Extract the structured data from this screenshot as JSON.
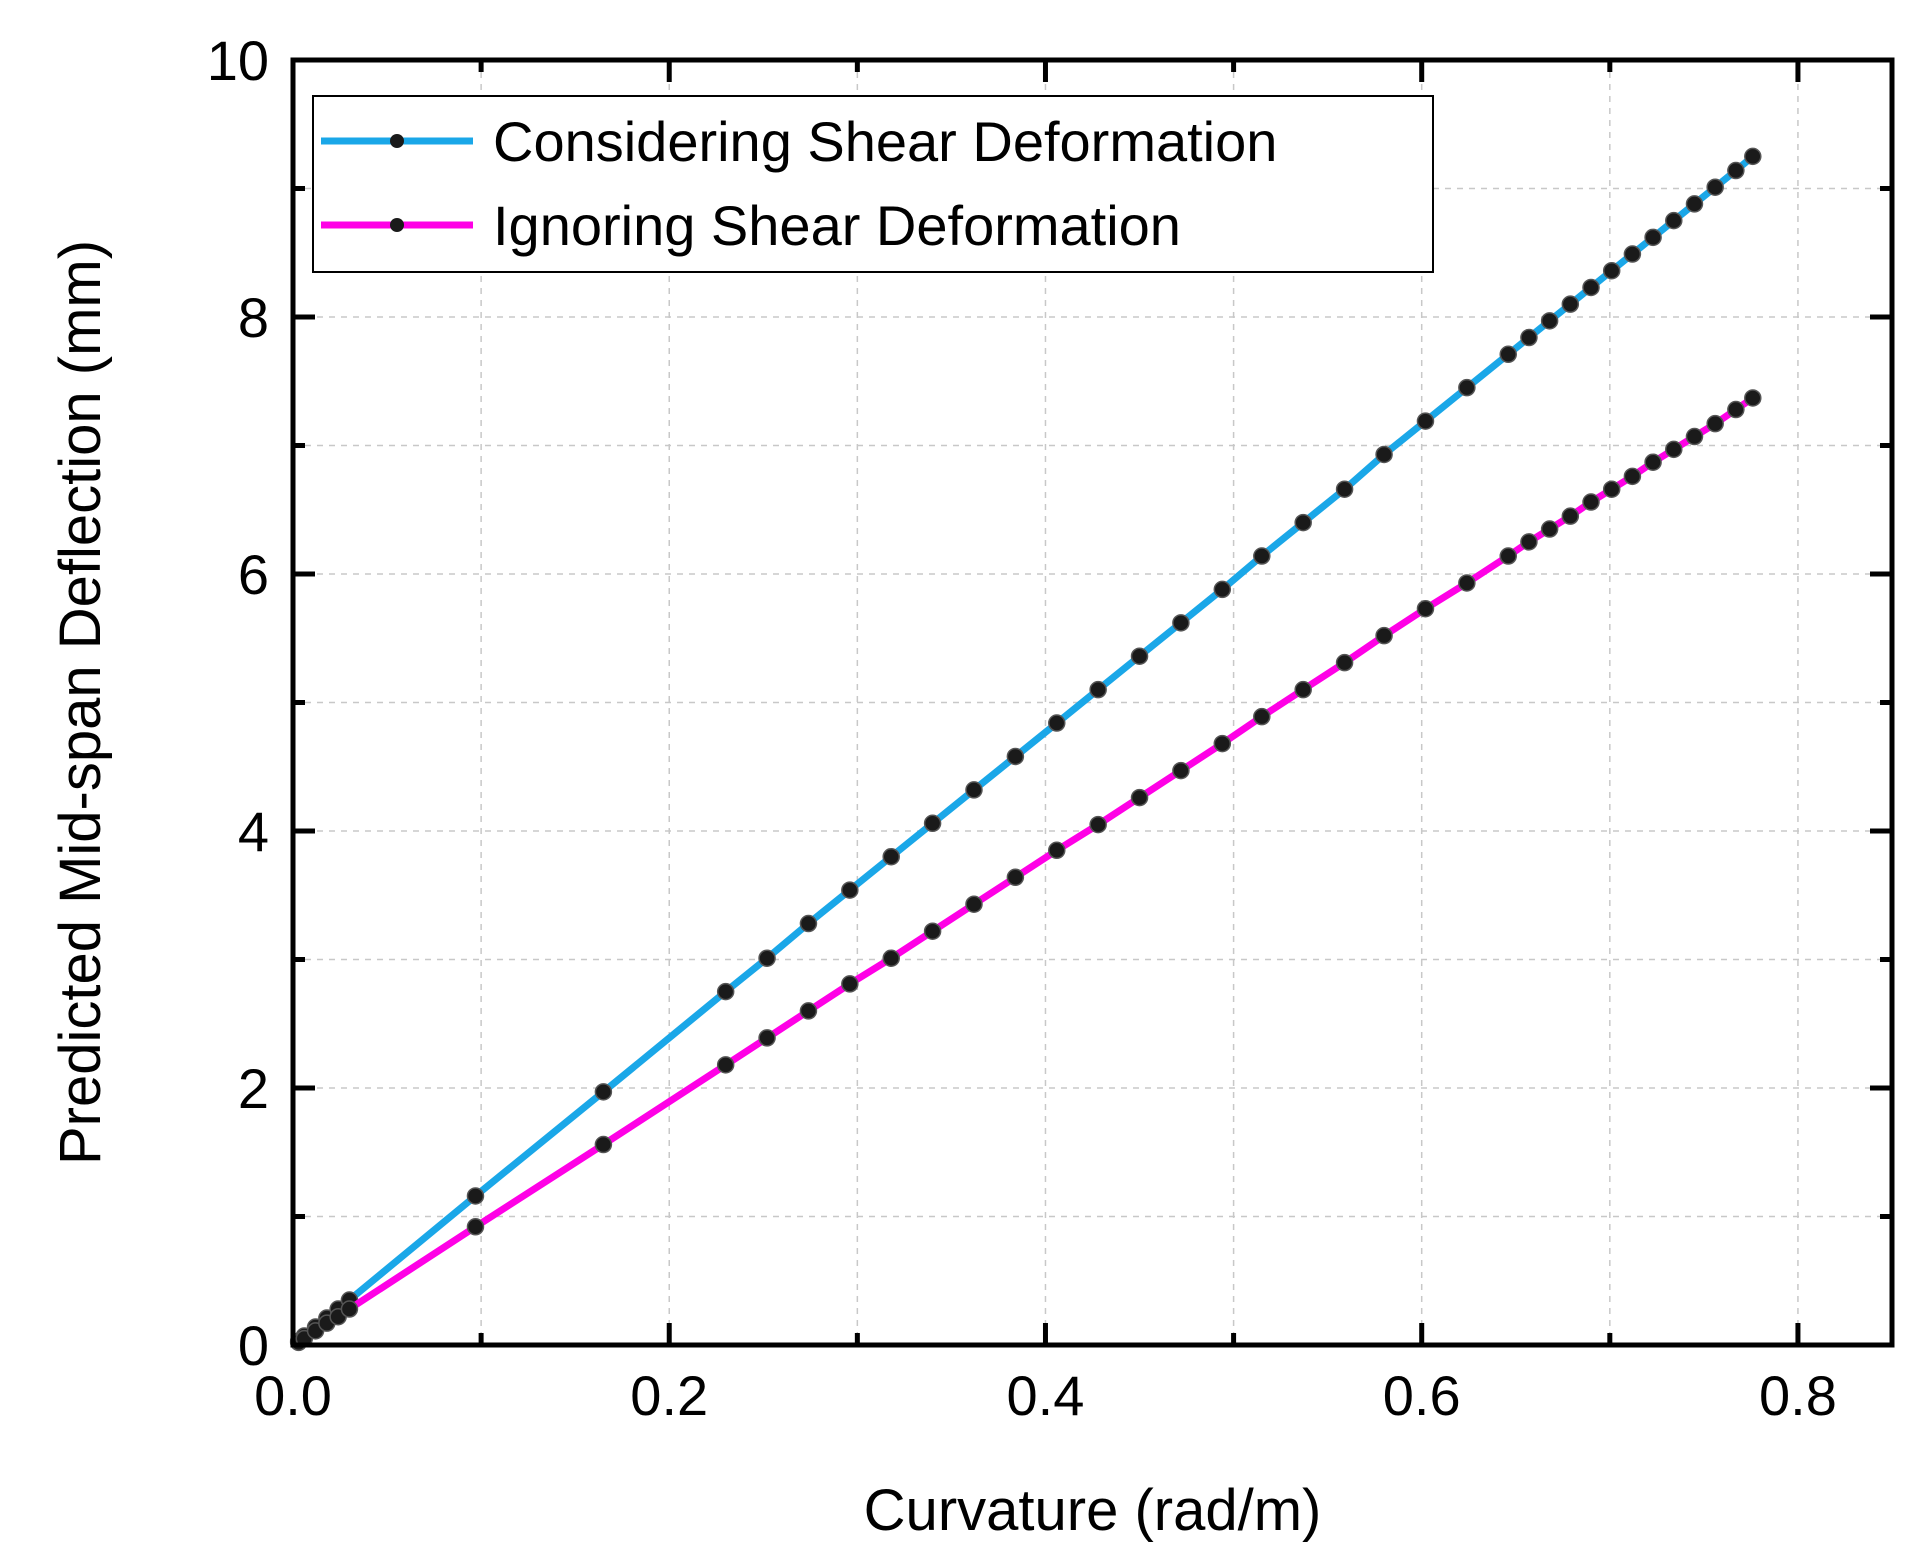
{
  "chart_data": {
    "type": "line",
    "title": "",
    "xlabel": "Curvature (rad/m)",
    "ylabel": "Predicted Mid-span Deflection (mm)",
    "xlim": [
      0,
      0.85
    ],
    "ylim": [
      0,
      10
    ],
    "xticks": [
      0.0,
      0.2,
      0.4,
      0.6,
      0.8
    ],
    "xtick_labels": [
      "0.0",
      "0.2",
      "0.4",
      "0.6",
      "0.8"
    ],
    "yticks": [
      0,
      2,
      4,
      6,
      8,
      10
    ],
    "ytick_labels": [
      "0",
      "2",
      "4",
      "6",
      "8",
      "10"
    ],
    "x_minor_step": 0.1,
    "y_minor_step": 1,
    "grid": true,
    "legend_position": "top-left",
    "series": [
      {
        "name": "Considering Shear Deformation",
        "color": "#1aa7e8",
        "marker_color": "#1a1a1a",
        "x": [
          0.003,
          0.006,
          0.012,
          0.018,
          0.024,
          0.03,
          0.097,
          0.165,
          0.23,
          0.252,
          0.274,
          0.296,
          0.318,
          0.34,
          0.362,
          0.384,
          0.406,
          0.428,
          0.45,
          0.472,
          0.494,
          0.515,
          0.537,
          0.559,
          0.58,
          0.602,
          0.624,
          0.646,
          0.657,
          0.668,
          0.679,
          0.69,
          0.701,
          0.712,
          0.723,
          0.734,
          0.745,
          0.756,
          0.767,
          0.776
        ],
        "y": [
          0.03,
          0.07,
          0.14,
          0.21,
          0.28,
          0.35,
          1.16,
          1.97,
          2.75,
          3.01,
          3.28,
          3.54,
          3.8,
          4.06,
          4.32,
          4.58,
          4.84,
          5.1,
          5.36,
          5.62,
          5.88,
          6.14,
          6.4,
          6.66,
          6.93,
          7.19,
          7.45,
          7.71,
          7.84,
          7.97,
          8.1,
          8.23,
          8.36,
          8.49,
          8.62,
          8.75,
          8.88,
          9.01,
          9.14,
          9.25
        ]
      },
      {
        "name": "Ignoring Shear Deformation",
        "color": "#ff00e6",
        "marker_color": "#1a1a1a",
        "x": [
          0.003,
          0.006,
          0.012,
          0.018,
          0.024,
          0.03,
          0.097,
          0.165,
          0.23,
          0.252,
          0.274,
          0.296,
          0.318,
          0.34,
          0.362,
          0.384,
          0.406,
          0.428,
          0.45,
          0.472,
          0.494,
          0.515,
          0.537,
          0.559,
          0.58,
          0.602,
          0.624,
          0.646,
          0.657,
          0.668,
          0.679,
          0.69,
          0.701,
          0.712,
          0.723,
          0.734,
          0.745,
          0.756,
          0.767,
          0.776
        ],
        "y": [
          0.02,
          0.05,
          0.11,
          0.17,
          0.22,
          0.28,
          0.92,
          1.56,
          2.18,
          2.39,
          2.6,
          2.81,
          3.01,
          3.22,
          3.43,
          3.64,
          3.85,
          4.05,
          4.26,
          4.47,
          4.68,
          4.89,
          5.1,
          5.31,
          5.52,
          5.73,
          5.93,
          6.14,
          6.25,
          6.35,
          6.45,
          6.56,
          6.66,
          6.76,
          6.87,
          6.97,
          7.07,
          7.17,
          7.28,
          7.37
        ]
      }
    ]
  }
}
